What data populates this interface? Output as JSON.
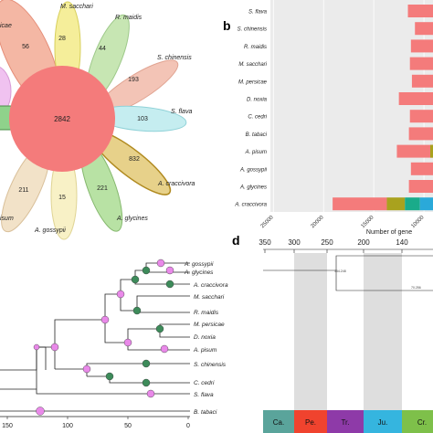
{
  "panel_labels": {
    "b": "b",
    "d": "d"
  },
  "flower": {
    "center_count": "2842",
    "petals": [
      {
        "name": "M. sacchari",
        "count": "28",
        "color": "#f5ee9a"
      },
      {
        "name": "R. maidis",
        "count": "44",
        "color": "#c7e6b3"
      },
      {
        "name": "S. chinensis",
        "count": "193",
        "color": "#f3c4b6"
      },
      {
        "name": "S. flava",
        "count": "103",
        "color": "#c5edf0"
      },
      {
        "name": "A. craccivora",
        "count": "832",
        "color": "#e7d18a"
      },
      {
        "name": "A. glycines",
        "count": "221",
        "color": "#b8e2a4"
      },
      {
        "name": "A. gossypii",
        "count": "15",
        "color": "#f8f1c6"
      },
      {
        "name": "A. pisum",
        "count": "211",
        "color": "#f2e2c8"
      },
      {
        "name": "",
        "count": "56",
        "color": "#f4b7a4"
      }
    ],
    "partial_labels": {
      "top_left": "icae",
      "bottom_left": "isum"
    }
  },
  "chart_data": {
    "type": "bar",
    "orientation": "horizontal",
    "categories": [
      "S. flava",
      "S. chinensis",
      "R. maidis",
      "M. sacchari",
      "M. persicae",
      "D. noxia",
      "C. cedri",
      "B. tabaci",
      "A. pisum",
      "A. gossypii",
      "A. glycines",
      "A. craccivora"
    ],
    "values": [
      11600,
      10900,
      11300,
      11400,
      11200,
      12500,
      11400,
      11500,
      12700,
      11300,
      11500,
      19100
    ],
    "stack_colors": [
      "#f47b7b",
      "#a9a21e",
      "#1aab8a",
      "#2aa9d9",
      "#e94fd8"
    ],
    "craccivora_stack": [
      5400,
      1800,
      1500,
      1300,
      1100
    ],
    "xaxis_reversed": true,
    "xticks": [
      "25000",
      "20000",
      "15000",
      "10000"
    ],
    "xlabel": "Number of gene",
    "xlim_visible": [
      25300,
      9100
    ]
  },
  "tree": {
    "taxa": [
      "A. gossypii",
      "A. glycines",
      "A. craccivora",
      "M. sacchari",
      "R. maidis",
      "M. persicae",
      "D. noxia",
      "A. pisum",
      "S. chinensis",
      "C. cedri",
      "S. flava",
      "B. tabaci"
    ],
    "axis_ticks": [
      "150",
      "100",
      "50",
      "0"
    ]
  },
  "timescale": {
    "ticks": [
      "350",
      "300",
      "250",
      "200",
      "140"
    ],
    "node_labels": [
      "154.248",
      "70.256"
    ],
    "periods": [
      {
        "label": "Ca.",
        "color": "#5aa49b"
      },
      {
        "label": "Pe.",
        "color": "#f0432e"
      },
      {
        "label": "Tr.",
        "color": "#8e3aa8"
      },
      {
        "label": "Ju.",
        "color": "#35b5df"
      },
      {
        "label": "Cr.",
        "color": "#7ec04a"
      }
    ]
  }
}
